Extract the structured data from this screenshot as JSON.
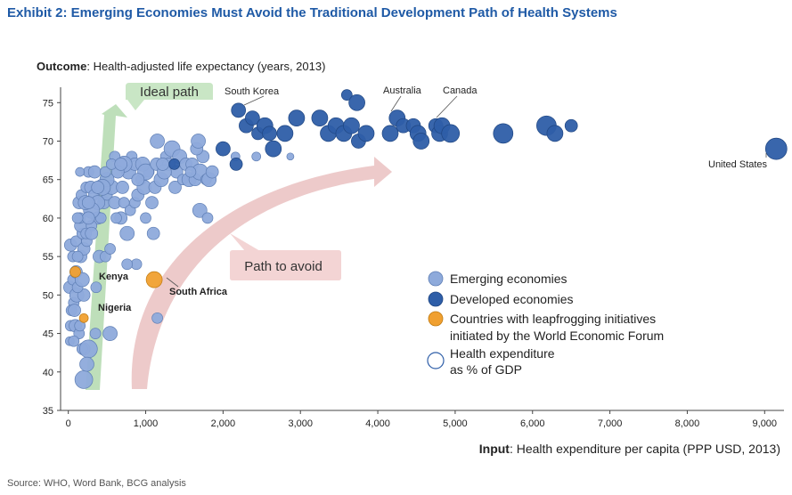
{
  "title": "Exhibit 2: Emerging Economies Must Avoid the Traditional Development Path of Health Systems",
  "source": "Source: WHO, Word Bank, BCG analysis",
  "colors": {
    "emerging": "#8eaadb",
    "developed": "#2e5ea8",
    "leapfrog": "#f0a030",
    "ideal_path": "#b7dcb3",
    "avoid_path": "#ebc5c5",
    "title": "#1f5aa6"
  },
  "chart_data": {
    "type": "scatter",
    "y_title_bold": "Outcome",
    "y_title_rest": ": Health-adjusted life expectancy (years, 2013)",
    "x_title_bold": "Input",
    "x_title_rest": ": Health expenditure per capita (PPP USD, 2013)",
    "xlim": [
      -100,
      9250
    ],
    "ylim": [
      35,
      77
    ],
    "x_ticks": [
      0,
      1000,
      2000,
      3000,
      4000,
      5000,
      6000,
      7000,
      8000,
      9000
    ],
    "x_tick_labels": [
      "0",
      "1,000",
      "2,000",
      "3,000",
      "4,000",
      "5,000",
      "6,000",
      "7,000",
      "8,000",
      "9,000"
    ],
    "y_ticks": [
      35,
      40,
      45,
      50,
      55,
      60,
      65,
      70,
      75
    ],
    "y_tick_labels": [
      "35",
      "40",
      "45",
      "50",
      "55",
      "60",
      "65",
      "70",
      "75"
    ],
    "arrow_labels": {
      "ideal": "Ideal path",
      "avoid": "Path to avoid"
    },
    "legend": {
      "emerging": "Emerging economies",
      "developed": "Developed economies",
      "leapfrog_line1": "Countries with leapfrogging initiatives",
      "leapfrog_line2": "initiated by the World Economic Forum",
      "size_line1": "Health expenditure",
      "size_line2": "as % of GDP"
    },
    "annotations": [
      {
        "text": "South Korea",
        "x": 2200,
        "y": 74.2,
        "bold": false
      },
      {
        "text": "Australia",
        "x": 4200,
        "y": 73.1,
        "bold": false
      },
      {
        "text": "Canada",
        "x": 4850,
        "y": 74.2,
        "bold": false
      },
      {
        "text": "United States",
        "x": 9150,
        "y": 69.3,
        "bold": false
      },
      {
        "text": "Kenya",
        "x": 110,
        "y": 53.1,
        "bold": true
      },
      {
        "text": "Nigeria",
        "x": 210,
        "y": 47.1,
        "bold": true
      },
      {
        "text": "South Africa",
        "x": 1100,
        "y": 52.1,
        "bold": true
      }
    ],
    "series": [
      {
        "name": "Emerging economies",
        "group": "emerging",
        "points": [
          [
            30,
            56.5,
            7
          ],
          [
            60,
            55,
            6
          ],
          [
            100,
            57,
            6
          ],
          [
            20,
            51,
            7
          ],
          [
            60,
            52,
            6
          ],
          [
            100,
            53,
            7
          ],
          [
            70,
            49,
            6
          ],
          [
            110,
            50,
            8
          ],
          [
            40,
            48,
            6
          ],
          [
            80,
            48,
            7
          ],
          [
            30,
            46,
            6
          ],
          [
            90,
            46,
            7
          ],
          [
            140,
            45,
            6
          ],
          [
            20,
            44,
            5
          ],
          [
            70,
            44,
            6
          ],
          [
            200,
            43,
            7
          ],
          [
            150,
            46,
            6
          ],
          [
            180,
            43,
            6
          ],
          [
            260,
            43,
            10
          ],
          [
            200,
            39,
            10
          ],
          [
            240,
            41,
            8
          ],
          [
            350,
            45,
            6
          ],
          [
            540,
            45,
            8
          ],
          [
            200,
            50,
            7
          ],
          [
            120,
            51,
            6
          ],
          [
            180,
            52,
            8
          ],
          [
            160,
            55,
            7
          ],
          [
            200,
            56,
            7
          ],
          [
            240,
            57,
            6
          ],
          [
            180,
            58,
            6
          ],
          [
            160,
            59,
            7
          ],
          [
            150,
            60,
            6
          ],
          [
            140,
            62,
            7
          ],
          [
            170,
            63,
            6
          ],
          [
            230,
            64,
            6
          ],
          [
            260,
            66,
            6
          ],
          [
            150,
            66,
            5
          ],
          [
            290,
            64,
            7
          ],
          [
            330,
            63,
            6
          ],
          [
            380,
            60,
            7
          ],
          [
            420,
            60,
            6
          ],
          [
            460,
            62,
            7
          ],
          [
            500,
            63,
            6
          ],
          [
            560,
            64,
            8
          ],
          [
            600,
            62,
            7
          ],
          [
            680,
            60,
            7
          ],
          [
            720,
            62,
            6
          ],
          [
            760,
            58,
            8
          ],
          [
            800,
            61,
            6
          ],
          [
            860,
            62,
            6
          ],
          [
            900,
            63,
            7
          ],
          [
            940,
            65,
            6
          ],
          [
            980,
            64,
            8
          ],
          [
            1040,
            66,
            6
          ],
          [
            1080,
            62,
            7
          ],
          [
            1120,
            64,
            7
          ],
          [
            1150,
            70,
            8
          ],
          [
            1200,
            65,
            8
          ],
          [
            1260,
            68,
            6
          ],
          [
            1300,
            67,
            7
          ],
          [
            1340,
            69,
            9
          ],
          [
            1380,
            64,
            7
          ],
          [
            1400,
            66,
            7
          ],
          [
            1440,
            68,
            8
          ],
          [
            1480,
            65,
            6
          ],
          [
            1520,
            67,
            7
          ],
          [
            1560,
            65,
            8
          ],
          [
            1600,
            67,
            7
          ],
          [
            1640,
            65,
            7
          ],
          [
            1700,
            66,
            9
          ],
          [
            1740,
            68,
            7
          ],
          [
            1780,
            65,
            6
          ],
          [
            1820,
            65,
            8
          ],
          [
            1860,
            66,
            7
          ],
          [
            1660,
            69,
            7
          ],
          [
            1680,
            70,
            8
          ],
          [
            1700,
            61,
            8
          ],
          [
            1800,
            60,
            6
          ],
          [
            1000,
            60,
            6
          ],
          [
            1100,
            58,
            7
          ],
          [
            880,
            54,
            6
          ],
          [
            760,
            54,
            6
          ],
          [
            1150,
            47,
            6
          ],
          [
            300,
            59,
            6
          ],
          [
            400,
            55,
            7
          ],
          [
            360,
            51,
            6
          ],
          [
            480,
            55,
            6
          ],
          [
            540,
            56,
            6
          ],
          [
            620,
            60,
            6
          ],
          [
            700,
            64,
            7
          ],
          [
            780,
            66,
            8
          ],
          [
            820,
            68,
            6
          ],
          [
            860,
            67,
            7
          ],
          [
            960,
            67,
            8
          ],
          [
            1000,
            66,
            9
          ],
          [
            1140,
            67,
            7
          ],
          [
            1240,
            66,
            8
          ],
          [
            720,
            67,
            9
          ],
          [
            640,
            66,
            7
          ],
          [
            600,
            68,
            6
          ],
          [
            500,
            65,
            8
          ],
          [
            440,
            64,
            9
          ],
          [
            380,
            62,
            8
          ],
          [
            340,
            66,
            7
          ],
          [
            300,
            61,
            9
          ],
          [
            260,
            60,
            7
          ],
          [
            220,
            62,
            8
          ],
          [
            260,
            62,
            7
          ],
          [
            230,
            58,
            6
          ],
          [
            120,
            60,
            6
          ],
          [
            120,
            55,
            6
          ],
          [
            380,
            64,
            7
          ],
          [
            480,
            66,
            6
          ],
          [
            560,
            67,
            6
          ],
          [
            680,
            67,
            7
          ],
          [
            900,
            65,
            7
          ],
          [
            1220,
            67,
            7
          ],
          [
            1580,
            66,
            6
          ],
          [
            2430,
            68,
            5
          ],
          [
            2870,
            68,
            4
          ],
          [
            2160,
            68,
            5
          ],
          [
            300,
            58,
            7
          ]
        ]
      },
      {
        "name": "Developed economies",
        "group": "developed",
        "points": [
          [
            2200,
            74,
            8
          ],
          [
            2300,
            72,
            8
          ],
          [
            2380,
            73,
            8
          ],
          [
            2450,
            71,
            7
          ],
          [
            2540,
            72,
            9
          ],
          [
            2600,
            71,
            8
          ],
          [
            2650,
            69,
            9
          ],
          [
            2800,
            71,
            9
          ],
          [
            2950,
            73,
            9
          ],
          [
            3250,
            73,
            9
          ],
          [
            3360,
            71,
            9
          ],
          [
            3460,
            72,
            9
          ],
          [
            3560,
            71,
            9
          ],
          [
            3660,
            72,
            9
          ],
          [
            3750,
            70,
            8
          ],
          [
            3850,
            71,
            9
          ],
          [
            3600,
            76,
            6
          ],
          [
            3730,
            75,
            9
          ],
          [
            4160,
            71,
            9
          ],
          [
            4250,
            73,
            9
          ],
          [
            4330,
            72,
            8
          ],
          [
            4460,
            72,
            8
          ],
          [
            4520,
            71,
            9
          ],
          [
            4560,
            70,
            9
          ],
          [
            4750,
            72,
            8
          ],
          [
            4800,
            71,
            9
          ],
          [
            4830,
            72,
            9
          ],
          [
            4940,
            71,
            10
          ],
          [
            5620,
            71,
            11
          ],
          [
            6180,
            72,
            11
          ],
          [
            6290,
            71,
            9
          ],
          [
            6500,
            72,
            7
          ],
          [
            2170,
            67,
            7
          ],
          [
            2000,
            69,
            8
          ],
          [
            1370,
            67,
            6
          ],
          [
            9150,
            69,
            12
          ]
        ]
      },
      {
        "name": "Countries with leapfrogging initiatives",
        "group": "leapfrog",
        "points": [
          [
            90,
            53,
            6
          ],
          [
            200,
            47,
            5
          ],
          [
            1110,
            52,
            9
          ]
        ]
      }
    ]
  }
}
